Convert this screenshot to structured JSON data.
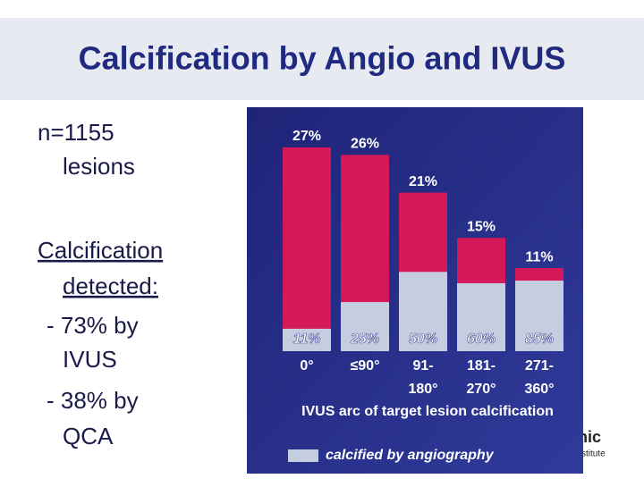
{
  "slide": {
    "title": "Calcification by Angio and IVUS",
    "body": [
      "n=1155",
      "lesions",
      "Calcification",
      "detected:",
      "- 73% by",
      "IVUS",
      "- 38% by",
      "QCA"
    ],
    "logo": [
      "nic",
      "stitute"
    ]
  },
  "chart_data": {
    "type": "bar",
    "categories": [
      "0°",
      "≤90°",
      "91-180°",
      "181-270°",
      "271-360°"
    ],
    "values": [
      27,
      26,
      21,
      15,
      11
    ],
    "value_labels": [
      "27%",
      "26%",
      "21%",
      "15%",
      "11%"
    ],
    "color": "#d4185a",
    "xlabel": "IVUS arc of target lesion calcification",
    "series": [
      {
        "name": "calcified by angiography",
        "color": "#c5cde0",
        "values": [
          11,
          25,
          50,
          60,
          85
        ],
        "value_labels": [
          "11%",
          "25%",
          "50%",
          "60%",
          "85%"
        ]
      }
    ]
  }
}
